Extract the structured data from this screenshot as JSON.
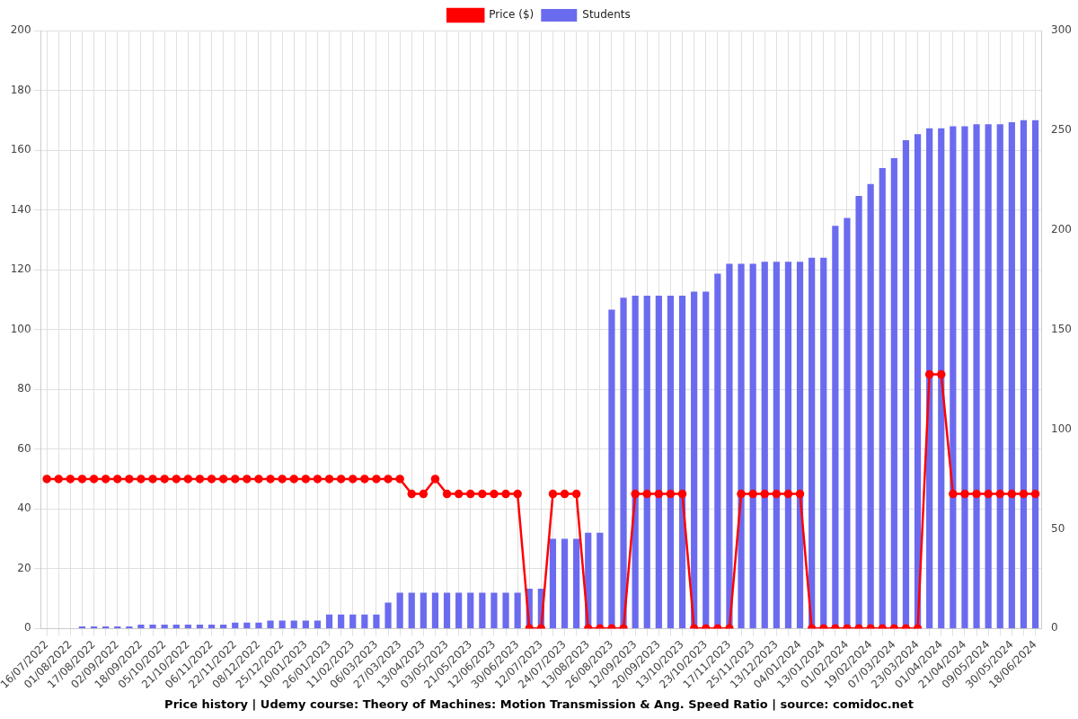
{
  "chart_data": {
    "type": "bar",
    "title": "Price history | Udemy course: Theory of Machines: Motion Transmission & Ang. Speed Ratio | source: comidoc.net",
    "categories": [
      "16/07/2022",
      null,
      "01/08/2022",
      null,
      "17/08/2022",
      null,
      "02/09/2022",
      null,
      "18/09/2022",
      null,
      "05/10/2022",
      null,
      "21/10/2022",
      null,
      "06/11/2022",
      null,
      "22/11/2022",
      null,
      "08/12/2022",
      null,
      "25/12/2022",
      null,
      "10/01/2023",
      null,
      "26/01/2023",
      null,
      "11/02/2023",
      null,
      "06/03/2023",
      null,
      "27/03/2023",
      null,
      "13/04/2023",
      null,
      "03/05/2023",
      null,
      "21/05/2023",
      null,
      "12/06/2023",
      null,
      "30/06/2023",
      null,
      "12/07/2023",
      null,
      "24/07/2023",
      null,
      "13/08/2023",
      null,
      "26/08/2023",
      null,
      "12/09/2023",
      null,
      "20/09/2023",
      null,
      "13/10/2023",
      null,
      "23/10/2023",
      null,
      "17/11/2023",
      null,
      "25/11/2023",
      null,
      "13/12/2023",
      null,
      "04/01/2024",
      null,
      "13/01/2024",
      null,
      "01/02/2024",
      null,
      "19/02/2024",
      null,
      "07/03/2024",
      null,
      "23/03/2024",
      null,
      "01/04/2024",
      null,
      "21/04/2024",
      null,
      "09/05/2024",
      null,
      "30/05/2024",
      null,
      "18/06/2024"
    ],
    "series": [
      {
        "name": "Price ($)",
        "type": "line",
        "color": "#ff0000",
        "marker": "circle",
        "line_style": "solid",
        "values": [
          50,
          50,
          50,
          50,
          50,
          50,
          50,
          50,
          50,
          50,
          50,
          50,
          50,
          50,
          50,
          50,
          50,
          50,
          50,
          50,
          50,
          50,
          50,
          50,
          50,
          50,
          50,
          50,
          50,
          50,
          50,
          45,
          45,
          50,
          45,
          45,
          45,
          45,
          45,
          45,
          45,
          0,
          0,
          45,
          45,
          45,
          0,
          0,
          0,
          0,
          45,
          45,
          45,
          45,
          45,
          0,
          0,
          0,
          0,
          45,
          45,
          45,
          45,
          45,
          45,
          0,
          0,
          0,
          0,
          0,
          0,
          0,
          0,
          0,
          0,
          85,
          85,
          45,
          45,
          45,
          45,
          45,
          45,
          45,
          45
        ]
      },
      {
        "name": "Students",
        "type": "bar",
        "color": "#6b6bef",
        "axis": "y2",
        "values": [
          0,
          0,
          0,
          1,
          1,
          1,
          1,
          1,
          2,
          2,
          2,
          2,
          2,
          2,
          2,
          2,
          3,
          3,
          3,
          4,
          4,
          4,
          4,
          4,
          7,
          7,
          7,
          7,
          7,
          13,
          18,
          18,
          18,
          18,
          18,
          18,
          18,
          18,
          18,
          18,
          18,
          20,
          20,
          45,
          45,
          45,
          48,
          48,
          160,
          166,
          167,
          167,
          167,
          167,
          167,
          169,
          169,
          178,
          183,
          183,
          183,
          184,
          184,
          184,
          184,
          186,
          186,
          202,
          206,
          217,
          223,
          231,
          236,
          245,
          248,
          251,
          251,
          252,
          252,
          253,
          253,
          253,
          254,
          255,
          255
        ]
      }
    ],
    "ylim": [
      0,
      200
    ],
    "yticks": [
      0,
      20,
      40,
      60,
      80,
      100,
      120,
      140,
      160,
      180,
      200
    ],
    "y2lim": [
      0,
      300
    ],
    "y2ticks": [
      0,
      50,
      100,
      150,
      200,
      250,
      300
    ],
    "grid": true,
    "legend": "top"
  }
}
